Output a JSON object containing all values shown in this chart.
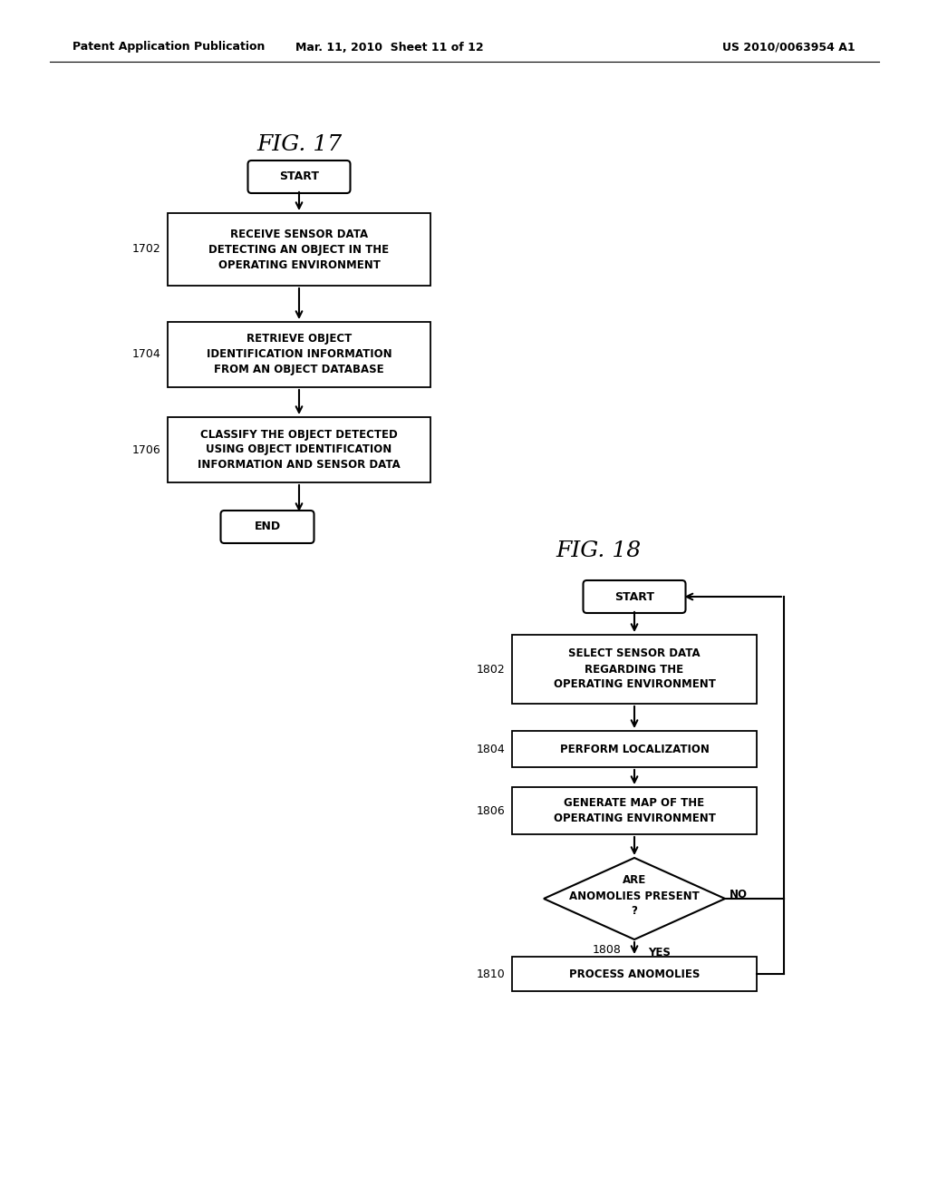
{
  "bg_color": "#ffffff",
  "header_left": "Patent Application Publication",
  "header_mid": "Mar. 11, 2010  Sheet 11 of 12",
  "header_right": "US 2010/0063954 A1",
  "fig17_title": "FIG. 17",
  "fig18_title": "FIG. 18"
}
